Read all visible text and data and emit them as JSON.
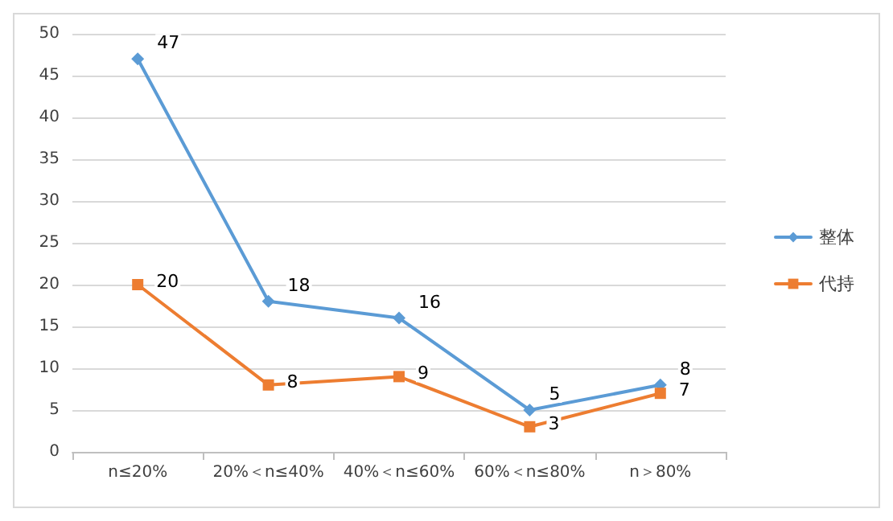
{
  "chart_data": {
    "type": "line",
    "categories": [
      "n≤20%",
      "20%＜n≤40%",
      "40%＜n≤60%",
      "60%＜n≤80%",
      "n＞80%"
    ],
    "series": [
      {
        "name": "整体",
        "color": "#5b9bd5",
        "marker": "diamond",
        "values": [
          47,
          18,
          16,
          5,
          8
        ]
      },
      {
        "name": "代持",
        "color": "#ed7d31",
        "marker": "square",
        "values": [
          20,
          8,
          9,
          3,
          7
        ]
      }
    ],
    "ylim": [
      0,
      50
    ],
    "yticks": [
      0,
      5,
      10,
      15,
      20,
      25,
      30,
      35,
      40,
      45,
      50
    ],
    "grid": "y",
    "legend": "right",
    "data_labels": true,
    "line_style": "solid"
  }
}
